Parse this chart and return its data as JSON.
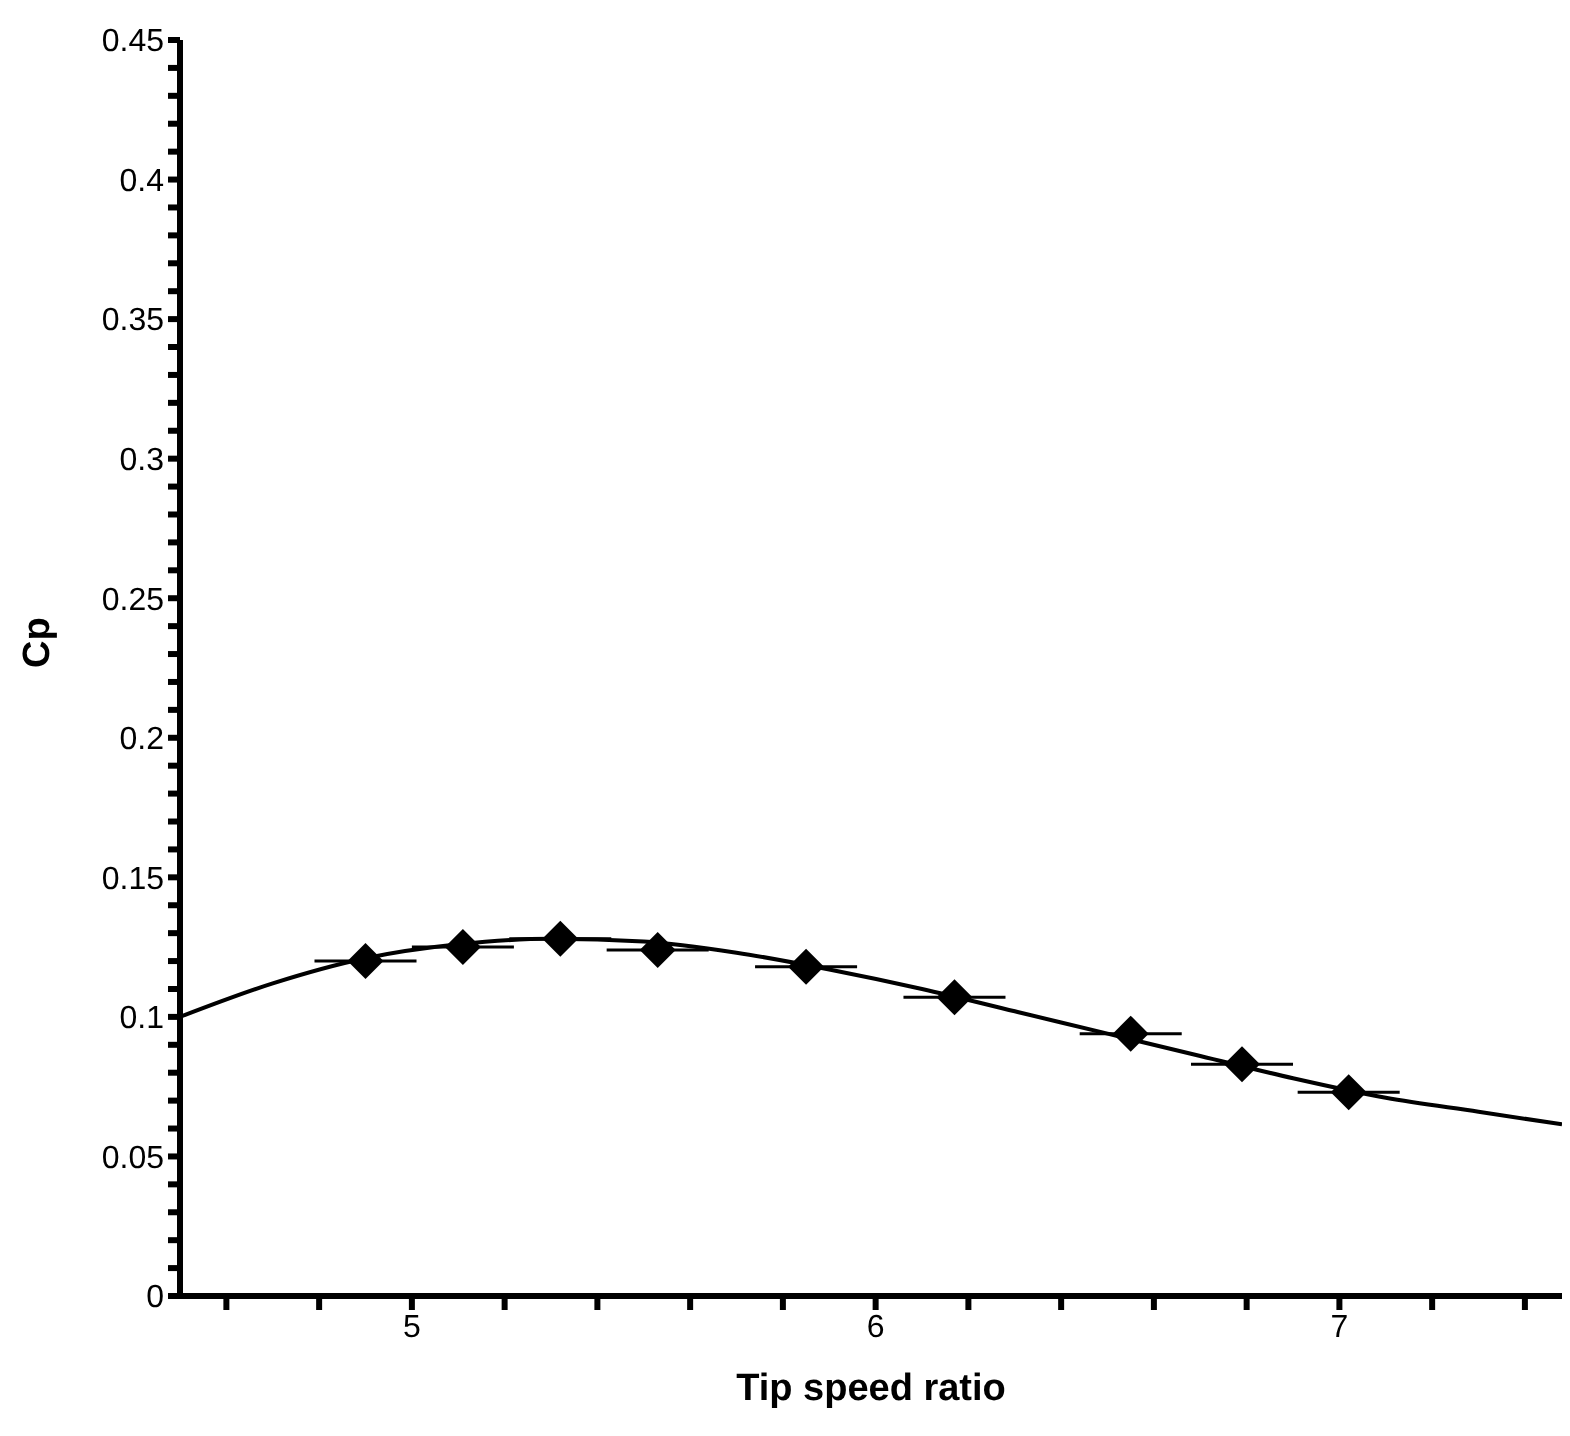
{
  "chart_data": {
    "type": "line",
    "xlabel": "Tip speed ratio",
    "ylabel": "Cp",
    "xlim": [
      4.5,
      7.48
    ],
    "ylim": [
      0,
      0.45
    ],
    "xticks": [
      {
        "value": 4.6,
        "label": null
      },
      {
        "value": 4.8,
        "label": null
      },
      5,
      {
        "value": 5.2,
        "label": null
      },
      {
        "value": 5.4,
        "label": null
      },
      {
        "value": 5.6,
        "label": null
      },
      {
        "value": 5.8,
        "label": null
      },
      6,
      {
        "value": 6.2,
        "label": null
      },
      {
        "value": 6.4,
        "label": null
      },
      {
        "value": 6.6,
        "label": null
      },
      {
        "value": 6.8,
        "label": null
      },
      7,
      {
        "value": 7.2,
        "label": null
      },
      {
        "value": 7.4,
        "label": null
      }
    ],
    "yticks": [
      0,
      {
        "value": 0.01,
        "label": null
      },
      {
        "value": 0.02,
        "label": null
      },
      {
        "value": 0.03,
        "label": null
      },
      {
        "value": 0.04,
        "label": null
      },
      0.05,
      {
        "value": 0.06,
        "label": null
      },
      {
        "value": 0.07,
        "label": null
      },
      {
        "value": 0.08,
        "label": null
      },
      {
        "value": 0.09,
        "label": null
      },
      0.1,
      {
        "value": 0.11,
        "label": null
      },
      {
        "value": 0.12,
        "label": null
      },
      {
        "value": 0.13,
        "label": null
      },
      {
        "value": 0.14,
        "label": null
      },
      0.15,
      {
        "value": 0.16,
        "label": null
      },
      {
        "value": 0.17,
        "label": null
      },
      {
        "value": 0.18,
        "label": null
      },
      {
        "value": 0.19,
        "label": null
      },
      0.2,
      {
        "value": 0.21,
        "label": null
      },
      {
        "value": 0.22,
        "label": null
      },
      {
        "value": 0.23,
        "label": null
      },
      {
        "value": 0.24,
        "label": null
      },
      0.25,
      {
        "value": 0.26,
        "label": null
      },
      {
        "value": 0.27,
        "label": null
      },
      {
        "value": 0.28,
        "label": null
      },
      {
        "value": 0.29,
        "label": null
      },
      0.3,
      {
        "value": 0.31,
        "label": null
      },
      {
        "value": 0.32,
        "label": null
      },
      {
        "value": 0.33,
        "label": null
      },
      {
        "value": 0.34,
        "label": null
      },
      0.35,
      {
        "value": 0.36,
        "label": null
      },
      {
        "value": 0.37,
        "label": null
      },
      {
        "value": 0.38,
        "label": null
      },
      {
        "value": 0.39,
        "label": null
      },
      0.4,
      {
        "value": 0.41,
        "label": null
      },
      {
        "value": 0.42,
        "label": null
      },
      {
        "value": 0.43,
        "label": null
      },
      {
        "value": 0.44,
        "label": null
      },
      0.45
    ],
    "series": [
      {
        "color": "#000000",
        "marker": "none",
        "line_style": "solid",
        "x": [
          4.5,
          4.7,
          4.9,
          5.1,
          5.3,
          5.5,
          5.7,
          5.9,
          6.1,
          6.3,
          6.5,
          6.7,
          6.9,
          7.1,
          7.3,
          7.48
        ],
        "values": [
          0.1,
          0.112,
          0.121,
          0.126,
          0.128,
          0.127,
          0.123,
          0.117,
          0.11,
          0.102,
          0.094,
          0.086,
          0.078,
          0.071,
          0.066,
          0.0615
        ]
      },
      {
        "type": "scatter",
        "color": "#000000",
        "marker": "diamond",
        "x": [
          4.9,
          5.11,
          5.32,
          5.53,
          5.85,
          6.17,
          6.55,
          6.79,
          7.02
        ],
        "values": [
          0.12,
          0.125,
          0.128,
          0.124,
          0.118,
          0.107,
          0.094,
          0.083,
          0.073
        ],
        "xerrors": [
          0.11,
          0.11,
          0.11,
          0.11,
          0.11,
          0.11,
          0.11,
          0.11,
          0.11
        ]
      }
    ]
  }
}
